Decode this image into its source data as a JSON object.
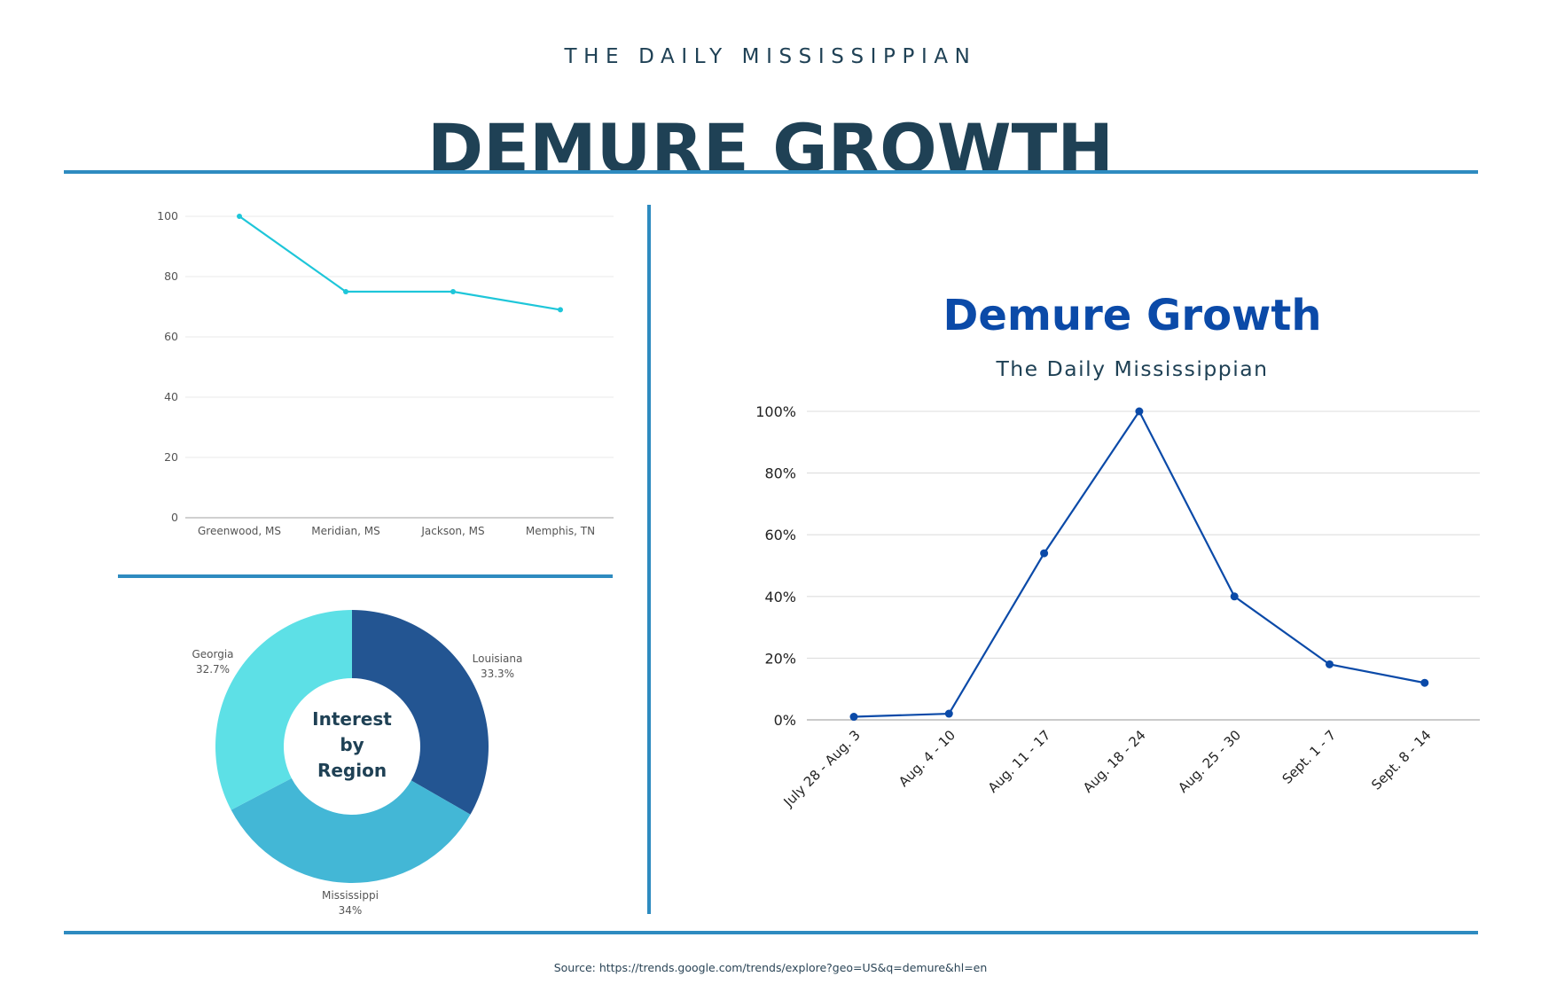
{
  "header": {
    "kicker": "THE DAILY MISSISSIPPIAN",
    "headline": "DEMURE GROWTH"
  },
  "footer": {
    "source": "Source: https://trends.google.com/trends/explore?geo=US&q=demure&hl=en"
  },
  "colors": {
    "rule": "#2e8bc0",
    "text_dark": "#1f4155",
    "cyan_line": "#1ec6d9",
    "blue_line": "#0b4aa8",
    "louisiana": "#235592",
    "mississippi": "#43b7d6",
    "georgia": "#5de0e6"
  },
  "chart_data": [
    {
      "id": "city-interest",
      "type": "line",
      "title": "",
      "xlabel": "",
      "ylabel": "",
      "categories": [
        "Greenwood, MS",
        "Meridian, MS",
        "Jackson, MS",
        "Memphis, TN"
      ],
      "values": [
        100,
        75,
        75,
        69
      ],
      "ylim": [
        0,
        100
      ],
      "yticks": [
        0,
        20,
        40,
        60,
        80,
        100
      ],
      "ytick_labels": [
        "0",
        "20",
        "40",
        "60",
        "80",
        "100"
      ],
      "grid": true,
      "color": "#1ec6d9"
    },
    {
      "id": "region-interest",
      "type": "pie",
      "donut": true,
      "center_label": [
        "Interest",
        "by",
        "Region"
      ],
      "slices": [
        {
          "label": "Louisiana",
          "value": 33.3,
          "value_label": "33.3%",
          "color": "#235592"
        },
        {
          "label": "Mississippi",
          "value": 34,
          "value_label": "34%",
          "color": "#43b7d6"
        },
        {
          "label": "Georgia",
          "value": 32.7,
          "value_label": "32.7%",
          "color": "#5de0e6"
        }
      ]
    },
    {
      "id": "weekly-growth",
      "type": "line",
      "title": "Demure Growth",
      "subtitle": "The Daily Mississippian",
      "xlabel": "",
      "ylabel": "",
      "categories": [
        "July 28 - Aug. 3",
        "Aug. 4 - 10",
        "Aug. 11 - 17",
        "Aug. 18 - 24",
        "Aug. 25 - 30",
        "Sept. 1 - 7",
        "Sept. 8 - 14"
      ],
      "values": [
        1,
        2,
        54,
        100,
        40,
        18,
        12
      ],
      "ylim": [
        0,
        100
      ],
      "yticks": [
        0,
        20,
        40,
        60,
        80,
        100
      ],
      "ytick_labels": [
        "0%",
        "20%",
        "40%",
        "60%",
        "80%",
        "100%"
      ],
      "grid": true,
      "color": "#0b4aa8"
    }
  ]
}
